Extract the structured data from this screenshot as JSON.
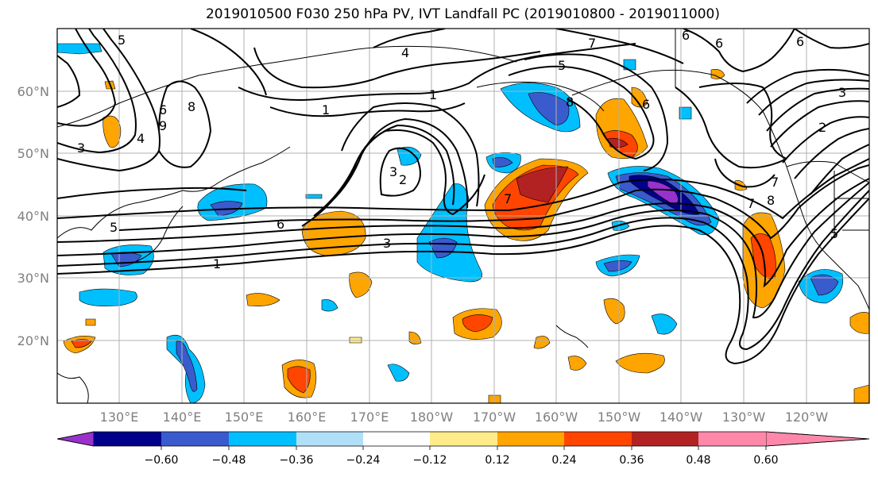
{
  "title": "2019010500 F030 250 hPa PV, IVT Landfall PC (2019010800 - 2019011000)",
  "lat_labels": [
    "60°N",
    "50°N",
    "40°N",
    "30°N",
    "20°N"
  ],
  "lon_labels": [
    "130°E",
    "140°E",
    "150°E",
    "160°E",
    "170°E",
    "180°W",
    "170°W",
    "160°W",
    "150°W",
    "140°W",
    "130°W",
    "120°W"
  ],
  "colorbar": {
    "colors": [
      "#9932cc",
      "#00008b",
      "#3a5bcd",
      "#00bfff",
      "#b0e0f8",
      "#ffffff",
      "#ffeb8a",
      "#ffa500",
      "#ff4500",
      "#b22222",
      "#ff88aa"
    ],
    "ticks": [
      "−0.60",
      "−0.48",
      "−0.36",
      "−0.24",
      "−0.12",
      "0.12",
      "0.24",
      "0.36",
      "0.48",
      "0.60"
    ]
  },
  "contour_labels": [
    "5",
    "6",
    "4",
    "3",
    "8",
    "9",
    "6",
    "3",
    "2",
    "1",
    "7",
    "5",
    "4",
    "7",
    "6",
    "5",
    "3",
    "2",
    "1",
    "8",
    "6",
    "3",
    "1",
    "7",
    "8",
    "6",
    "6",
    "5",
    "7"
  ]
}
